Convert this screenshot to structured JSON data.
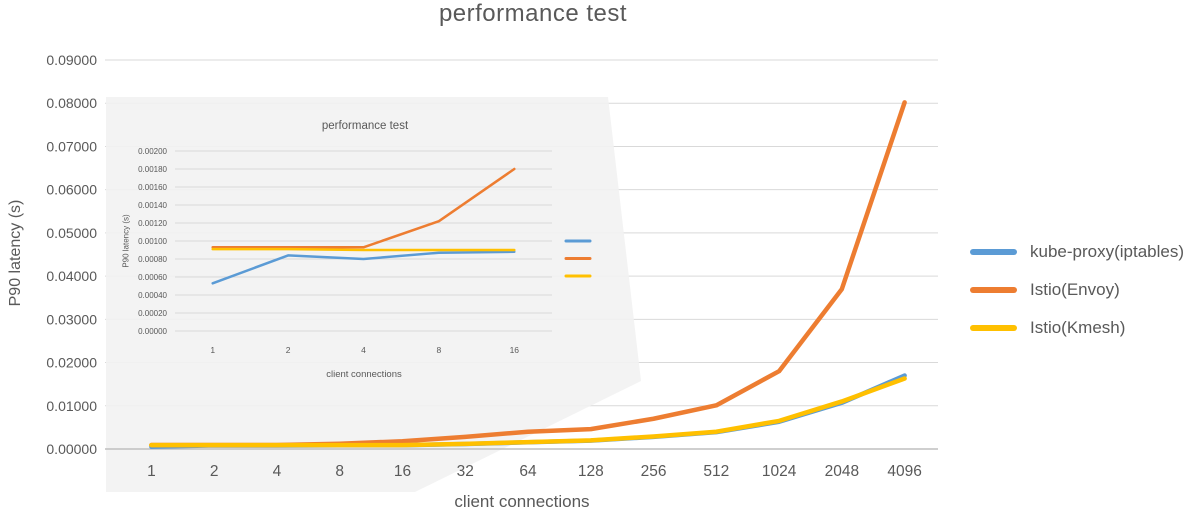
{
  "colors": {
    "background": "#ffffff",
    "grid": "#d9d9d9",
    "axis_line": "#bfbfbf",
    "text": "#595959",
    "overlay_panel": "#f2f2f2",
    "series_blue": "#5B9BD5",
    "series_orange": "#ED7D31",
    "series_yellow": "#FFC000"
  },
  "chart_data": {
    "type": "line",
    "title": "performance test",
    "xlabel": "client connections",
    "ylabel": "P90 latency (s)",
    "categories": [
      "1",
      "2",
      "4",
      "8",
      "16",
      "32",
      "64",
      "128",
      "256",
      "512",
      "1024",
      "2048",
      "4096"
    ],
    "ylim": [
      0,
      0.09
    ],
    "ytick_step": 0.01,
    "ytick_labels": [
      "0.00000",
      "0.01000",
      "0.02000",
      "0.03000",
      "0.04000",
      "0.05000",
      "0.06000",
      "0.07000",
      "0.08000",
      "0.09000"
    ],
    "grid": true,
    "legend_position": "right",
    "series": [
      {
        "name": "kube-proxy(iptables)",
        "color": "#5B9BD5",
        "values": [
          0.00053,
          0.00084,
          0.0008,
          0.00087,
          0.00088,
          0.00115,
          0.00155,
          0.00195,
          0.0028,
          0.0039,
          0.0063,
          0.0107,
          0.017
        ]
      },
      {
        "name": "Istio(Envoy)",
        "color": "#ED7D31",
        "values": [
          0.00093,
          0.00093,
          0.00093,
          0.00122,
          0.0018,
          0.0028,
          0.004,
          0.0046,
          0.007,
          0.0101,
          0.018,
          0.037,
          0.0802
        ]
      },
      {
        "name": "Istio(Kmesh)",
        "color": "#FFC000",
        "values": [
          0.00091,
          0.00091,
          0.0009,
          0.0009,
          0.0009,
          0.0012,
          0.0016,
          0.002,
          0.0029,
          0.004,
          0.0065,
          0.011,
          0.0163
        ]
      }
    ],
    "inset": {
      "type": "line",
      "title": "performance test",
      "xlabel": "client connections",
      "ylabel": "P90 latency (s)",
      "categories": [
        "1",
        "2",
        "4",
        "8",
        "16"
      ],
      "ylim": [
        0,
        0.002
      ],
      "ytick_step": 0.0002,
      "ytick_labels": [
        "0.00000",
        "0.00020",
        "0.00040",
        "0.00060",
        "0.00080",
        "0.00100",
        "0.00120",
        "0.00140",
        "0.00160",
        "0.00180",
        "0.00200"
      ],
      "grid": true,
      "legend_swatches_only": true,
      "series": [
        {
          "name": "kube-proxy(iptables)",
          "color": "#5B9BD5",
          "values": [
            0.00053,
            0.00084,
            0.0008,
            0.00087,
            0.00088
          ]
        },
        {
          "name": "Istio(Envoy)",
          "color": "#ED7D31",
          "values": [
            0.00093,
            0.00093,
            0.00093,
            0.00122,
            0.0018
          ]
        },
        {
          "name": "Istio(Kmesh)",
          "color": "#FFC000",
          "values": [
            0.00091,
            0.00091,
            0.0009,
            0.0009,
            0.0009
          ]
        }
      ]
    }
  }
}
